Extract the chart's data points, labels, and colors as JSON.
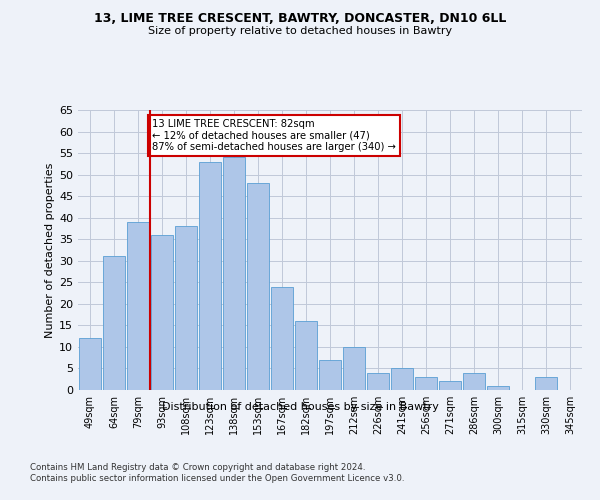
{
  "title1": "13, LIME TREE CRESCENT, BAWTRY, DONCASTER, DN10 6LL",
  "title2": "Size of property relative to detached houses in Bawtry",
  "xlabel": "Distribution of detached houses by size in Bawtry",
  "ylabel": "Number of detached properties",
  "categories": [
    "49sqm",
    "64sqm",
    "79sqm",
    "93sqm",
    "108sqm",
    "123sqm",
    "138sqm",
    "153sqm",
    "167sqm",
    "182sqm",
    "197sqm",
    "212sqm",
    "226sqm",
    "241sqm",
    "256sqm",
    "271sqm",
    "286sqm",
    "300sqm",
    "315sqm",
    "330sqm",
    "345sqm"
  ],
  "values": [
    12,
    31,
    39,
    36,
    38,
    53,
    54,
    48,
    24,
    16,
    7,
    10,
    4,
    5,
    3,
    2,
    4,
    1,
    0,
    3,
    0
  ],
  "bar_color": "#aec6e8",
  "bar_edge_color": "#5a9fd4",
  "grid_color": "#c0c8d8",
  "ref_line_color": "#cc0000",
  "annotation_text": "13 LIME TREE CRESCENT: 82sqm\n← 12% of detached houses are smaller (47)\n87% of semi-detached houses are larger (340) →",
  "annotation_box_color": "#ffffff",
  "annotation_box_edge": "#cc0000",
  "ylim": [
    0,
    65
  ],
  "yticks": [
    0,
    5,
    10,
    15,
    20,
    25,
    30,
    35,
    40,
    45,
    50,
    55,
    60,
    65
  ],
  "footer1": "Contains HM Land Registry data © Crown copyright and database right 2024.",
  "footer2": "Contains public sector information licensed under the Open Government Licence v3.0.",
  "bg_color": "#eef2f9"
}
